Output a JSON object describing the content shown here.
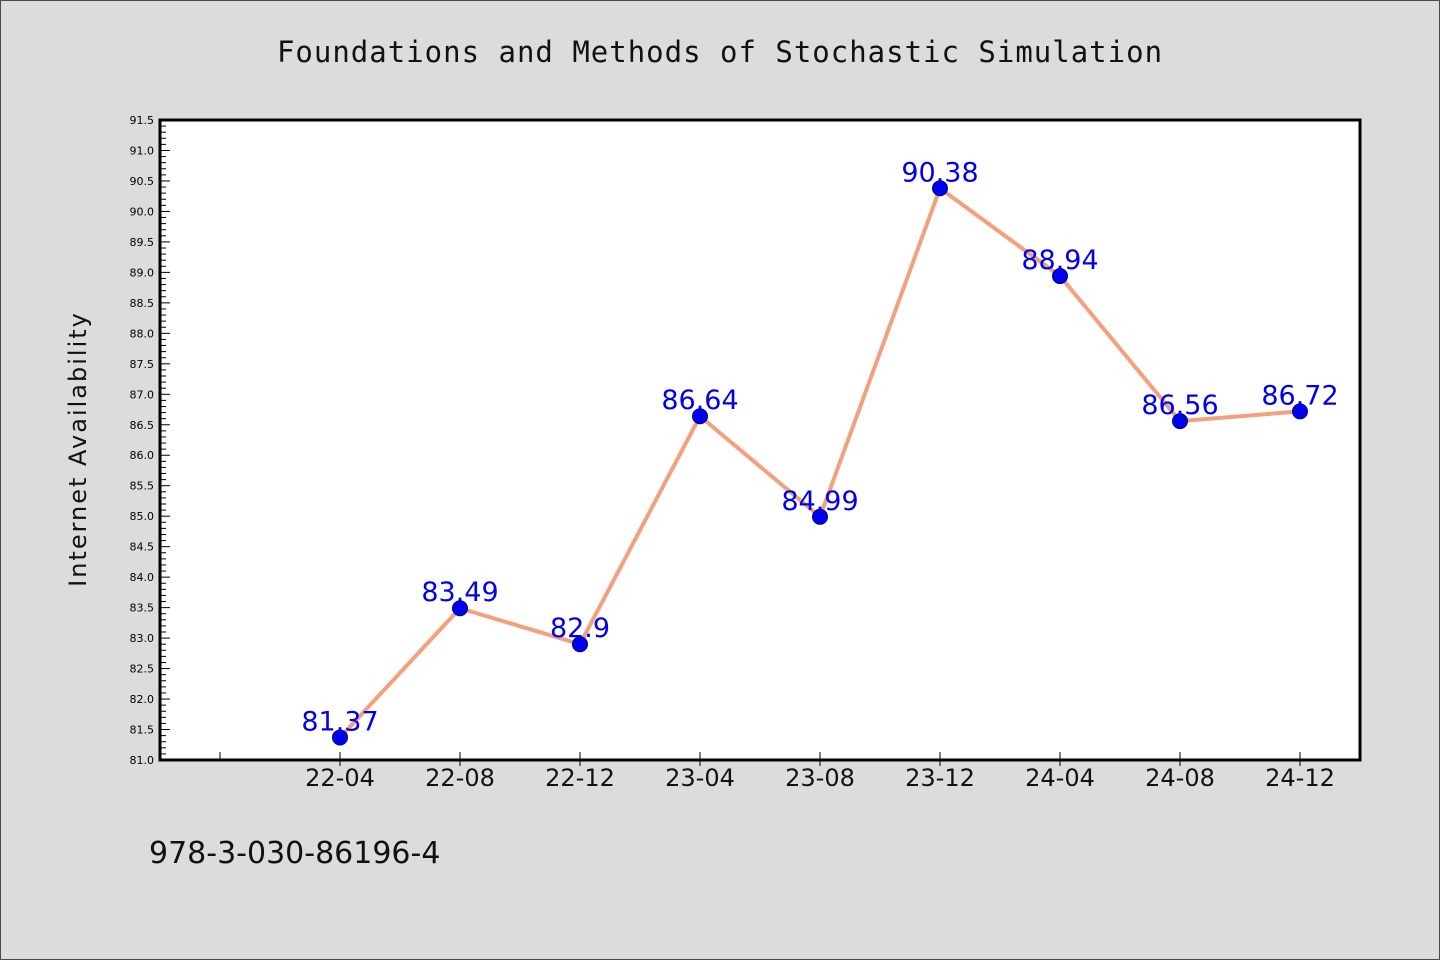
{
  "title": "Foundations and Methods of Stochastic Simulation",
  "footer_code": "978-3-030-86196-4",
  "chart_data": {
    "type": "line",
    "title": "Foundations and Methods of Stochastic Simulation",
    "xlabel": "",
    "ylabel": "Internet Availability",
    "categories": [
      "22-04",
      "22-08",
      "22-12",
      "23-04",
      "23-08",
      "23-12",
      "24-04",
      "24-08",
      "24-12"
    ],
    "values": [
      81.37,
      83.49,
      82.9,
      86.64,
      84.99,
      90.38,
      88.94,
      86.56,
      86.72
    ],
    "data_labels": [
      "81.37",
      "83.49",
      "82.9",
      "86.64",
      "84.99",
      "90.38",
      "88.94",
      "86.56",
      "86.72"
    ],
    "ylim": [
      81.0,
      91.5
    ],
    "y_major_step": 0.5,
    "y_minor_step": 0.1,
    "grid": false,
    "legend": "none",
    "colors": {
      "background": "#dcdcdc",
      "plot_background": "#ffffff",
      "line": "#f4a07c",
      "marker": "#0000ee",
      "data_label": "#0000ee",
      "axis": "#000000"
    }
  }
}
